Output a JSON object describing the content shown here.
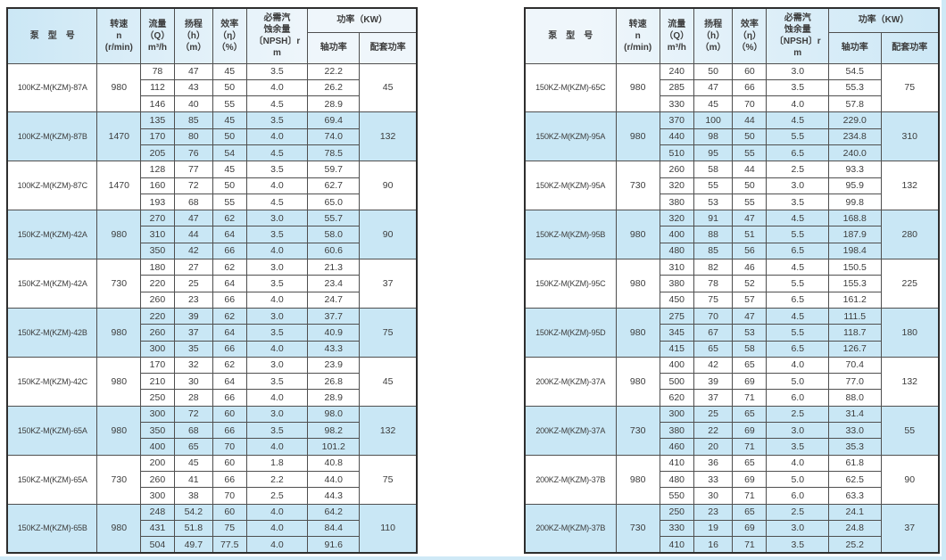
{
  "colors": {
    "row_highlight": "#c9e7f5",
    "header_tint": "#cde8f6",
    "page_edge": "#cfe9f6",
    "border_outer": "#2e2e2e",
    "border_inner": "#4f4f4f",
    "text": "#3c3c3c"
  },
  "header": {
    "model": "泵　型　号",
    "speed": "转速\nn\n(r/min)",
    "flow": "流量\n（Q）\nm³/h",
    "head": "扬程\n（h）\n（m）",
    "efficiency": "效率\n（η）\n（%）",
    "npsh": "必需汽\n蚀余量\n〔NPSH〕r\nm",
    "power": "功率（KW）",
    "shaft": "轴功率",
    "matching": "配套功率"
  },
  "tables": [
    {
      "groups": [
        {
          "model": "100KZ-M(KZM)-87A",
          "speed": "980",
          "shaded": false,
          "matching": "45",
          "rows": [
            [
              "78",
              "47",
              "45",
              "3.5",
              "22.2"
            ],
            [
              "112",
              "43",
              "50",
              "4.0",
              "26.2"
            ],
            [
              "146",
              "40",
              "55",
              "4.5",
              "28.9"
            ]
          ]
        },
        {
          "model": "100KZ-M(KZM)-87B",
          "speed": "1470",
          "shaded": true,
          "matching": "132",
          "rows": [
            [
              "135",
              "85",
              "45",
              "3.5",
              "69.4"
            ],
            [
              "170",
              "80",
              "50",
              "4.0",
              "74.0"
            ],
            [
              "205",
              "76",
              "54",
              "4.5",
              "78.5"
            ]
          ]
        },
        {
          "model": "100KZ-M(KZM)-87C",
          "speed": "1470",
          "shaded": false,
          "matching": "90",
          "rows": [
            [
              "128",
              "77",
              "45",
              "3.5",
              "59.7"
            ],
            [
              "160",
              "72",
              "50",
              "4.0",
              "62.7"
            ],
            [
              "193",
              "68",
              "55",
              "4.5",
              "65.0"
            ]
          ]
        },
        {
          "model": "150KZ-M(KZM)-42A",
          "speed": "980",
          "shaded": true,
          "matching": "90",
          "rows": [
            [
              "270",
              "47",
              "62",
              "3.0",
              "55.7"
            ],
            [
              "310",
              "44",
              "64",
              "3.5",
              "58.0"
            ],
            [
              "350",
              "42",
              "66",
              "4.0",
              "60.6"
            ]
          ]
        },
        {
          "model": "150KZ-M(KZM)-42A",
          "speed": "730",
          "shaded": false,
          "matching": "37",
          "rows": [
            [
              "180",
              "27",
              "62",
              "3.0",
              "21.3"
            ],
            [
              "220",
              "25",
              "64",
              "3.5",
              "23.4"
            ],
            [
              "260",
              "23",
              "66",
              "4.0",
              "24.7"
            ]
          ]
        },
        {
          "model": "150KZ-M(KZM)-42B",
          "speed": "980",
          "shaded": true,
          "matching": "75",
          "rows": [
            [
              "220",
              "39",
              "62",
              "3.0",
              "37.7"
            ],
            [
              "260",
              "37",
              "64",
              "3.5",
              "40.9"
            ],
            [
              "300",
              "35",
              "66",
              "4.0",
              "43.3"
            ]
          ]
        },
        {
          "model": "150KZ-M(KZM)-42C",
          "speed": "980",
          "shaded": false,
          "matching": "45",
          "rows": [
            [
              "170",
              "32",
              "62",
              "3.0",
              "23.9"
            ],
            [
              "210",
              "30",
              "64",
              "3.5",
              "26.8"
            ],
            [
              "250",
              "28",
              "66",
              "4.0",
              "28.9"
            ]
          ]
        },
        {
          "model": "150KZ-M(KZM)-65A",
          "speed": "980",
          "shaded": true,
          "matching": "132",
          "rows": [
            [
              "300",
              "72",
              "60",
              "3.0",
              "98.0"
            ],
            [
              "350",
              "68",
              "66",
              "3.5",
              "98.2"
            ],
            [
              "400",
              "65",
              "70",
              "4.0",
              "101.2"
            ]
          ]
        },
        {
          "model": "150KZ-M(KZM)-65A",
          "speed": "730",
          "shaded": false,
          "matching": "75",
          "rows": [
            [
              "200",
              "45",
              "60",
              "1.8",
              "40.8"
            ],
            [
              "260",
              "41",
              "66",
              "2.2",
              "44.0"
            ],
            [
              "300",
              "38",
              "70",
              "2.5",
              "44.3"
            ]
          ]
        },
        {
          "model": "150KZ-M(KZM)-65B",
          "speed": "980",
          "shaded": true,
          "matching": "110",
          "rows": [
            [
              "248",
              "54.2",
              "60",
              "4.0",
              "64.2"
            ],
            [
              "431",
              "51.8",
              "75",
              "4.0",
              "84.4"
            ],
            [
              "504",
              "49.7",
              "77.5",
              "4.0",
              "91.6"
            ]
          ]
        }
      ]
    },
    {
      "groups": [
        {
          "model": "150KZ-M(KZM)-65C",
          "speed": "980",
          "shaded": false,
          "matching": "75",
          "rows": [
            [
              "240",
              "50",
              "60",
              "3.0",
              "54.5"
            ],
            [
              "285",
              "47",
              "66",
              "3.5",
              "55.3"
            ],
            [
              "330",
              "45",
              "70",
              "4.0",
              "57.8"
            ]
          ]
        },
        {
          "model": "150KZ-M(KZM)-95A",
          "speed": "980",
          "shaded": true,
          "matching": "310",
          "rows": [
            [
              "370",
              "100",
              "44",
              "4.5",
              "229.0"
            ],
            [
              "440",
              "98",
              "50",
              "5.5",
              "234.8"
            ],
            [
              "510",
              "95",
              "55",
              "6.5",
              "240.0"
            ]
          ]
        },
        {
          "model": "150KZ-M(KZM)-95A",
          "speed": "730",
          "shaded": false,
          "matching": "132",
          "rows": [
            [
              "260",
              "58",
              "44",
              "2.5",
              "93.3"
            ],
            [
              "320",
              "55",
              "50",
              "3.0",
              "95.9"
            ],
            [
              "380",
              "53",
              "55",
              "3.5",
              "99.8"
            ]
          ]
        },
        {
          "model": "150KZ-M(KZM)-95B",
          "speed": "980",
          "shaded": true,
          "matching": "280",
          "rows": [
            [
              "320",
              "91",
              "47",
              "4.5",
              "168.8"
            ],
            [
              "400",
              "88",
              "51",
              "5.5",
              "187.9"
            ],
            [
              "480",
              "85",
              "56",
              "6.5",
              "198.4"
            ]
          ]
        },
        {
          "model": "150KZ-M(KZM)-95C",
          "speed": "980",
          "shaded": false,
          "matching": "225",
          "rows": [
            [
              "310",
              "82",
              "46",
              "4.5",
              "150.5"
            ],
            [
              "380",
              "78",
              "52",
              "5.5",
              "155.3"
            ],
            [
              "450",
              "75",
              "57",
              "6.5",
              "161.2"
            ]
          ]
        },
        {
          "model": "150KZ-M(KZM)-95D",
          "speed": "980",
          "shaded": true,
          "matching": "180",
          "rows": [
            [
              "275",
              "70",
              "47",
              "4.5",
              "111.5"
            ],
            [
              "345",
              "67",
              "53",
              "5.5",
              "118.7"
            ],
            [
              "415",
              "65",
              "58",
              "6.5",
              "126.7"
            ]
          ]
        },
        {
          "model": "200KZ-M(KZM)-37A",
          "speed": "980",
          "shaded": false,
          "matching": "132",
          "rows": [
            [
              "400",
              "42",
              "65",
              "4.0",
              "70.4"
            ],
            [
              "500",
              "39",
              "69",
              "5.0",
              "77.0"
            ],
            [
              "620",
              "37",
              "71",
              "6.0",
              "88.0"
            ]
          ]
        },
        {
          "model": "200KZ-M(KZM)-37A",
          "speed": "730",
          "shaded": true,
          "matching": "55",
          "rows": [
            [
              "300",
              "25",
              "65",
              "2.5",
              "31.4"
            ],
            [
              "380",
              "22",
              "69",
              "3.0",
              "33.0"
            ],
            [
              "460",
              "20",
              "71",
              "3.5",
              "35.3"
            ]
          ]
        },
        {
          "model": "200KZ-M(KZM)-37B",
          "speed": "980",
          "shaded": false,
          "matching": "90",
          "rows": [
            [
              "410",
              "36",
              "65",
              "4.0",
              "61.8"
            ],
            [
              "480",
              "33",
              "69",
              "5.0",
              "62.5"
            ],
            [
              "550",
              "30",
              "71",
              "6.0",
              "63.3"
            ]
          ]
        },
        {
          "model": "200KZ-M(KZM)-37B",
          "speed": "730",
          "shaded": true,
          "matching": "37",
          "rows": [
            [
              "250",
              "23",
              "65",
              "2.5",
              "24.1"
            ],
            [
              "330",
              "19",
              "69",
              "3.0",
              "24.8"
            ],
            [
              "410",
              "16",
              "71",
              "3.5",
              "25.2"
            ]
          ]
        }
      ]
    }
  ]
}
